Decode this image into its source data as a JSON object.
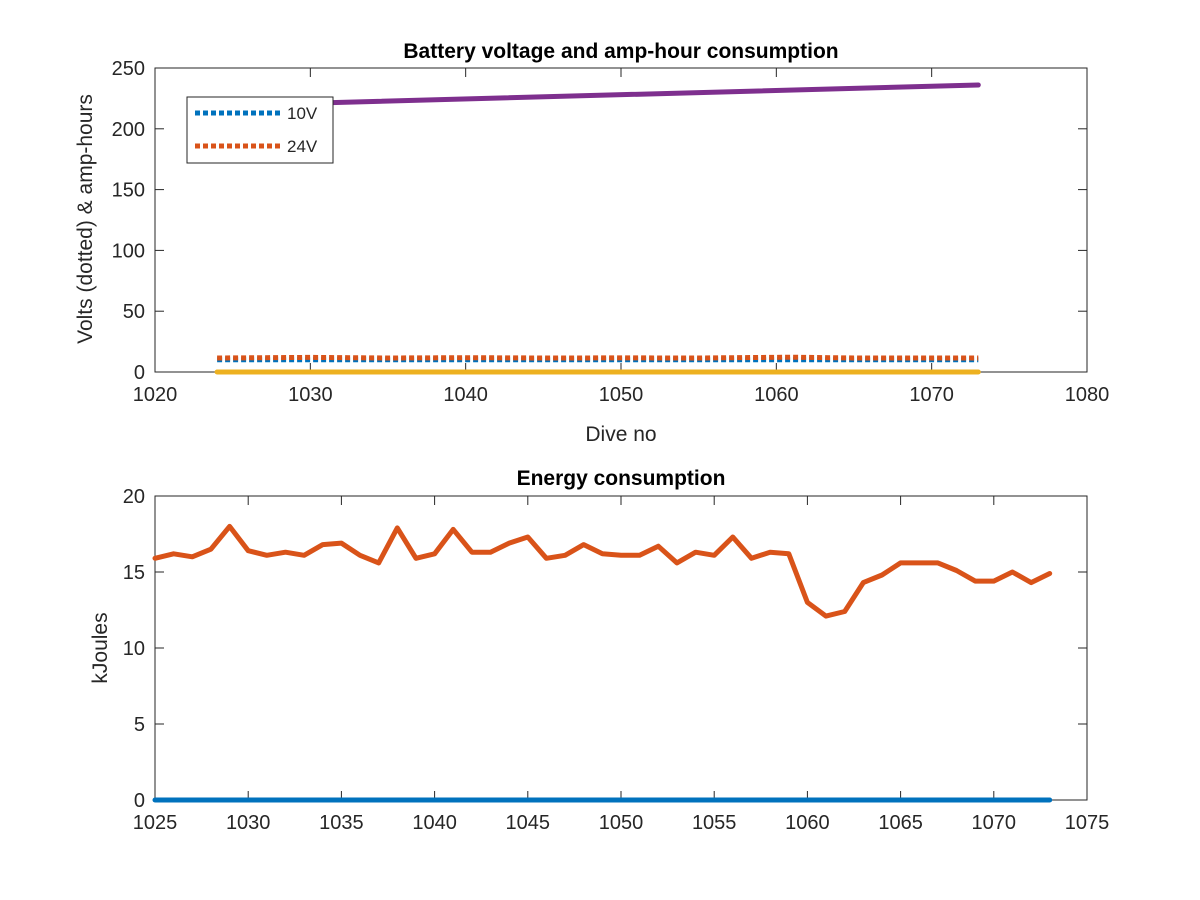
{
  "chart_data": [
    {
      "type": "line",
      "title": "Battery voltage and amp-hour consumption",
      "xlabel": "Dive no",
      "ylabel": "Volts (dotted) & amp-hours",
      "xlim": [
        1020,
        1080
      ],
      "ylim": [
        0,
        250
      ],
      "xticks": [
        "1020",
        "1030",
        "1040",
        "1050",
        "1060",
        "1070",
        "1080"
      ],
      "yticks": [
        "0",
        "50",
        "100",
        "150",
        "200",
        "250"
      ],
      "grid": false,
      "legend": {
        "position": "top-left",
        "entries": [
          "10V",
          "24V"
        ]
      },
      "series": [
        {
          "name": "10V",
          "style": "dotted",
          "color": "#0072BD",
          "x": [
            1024,
            1073
          ],
          "y": [
            10,
            10
          ]
        },
        {
          "name": "24V",
          "style": "dotted",
          "color": "#D95319",
          "x": [
            1024,
            1030,
            1035,
            1040,
            1045,
            1050,
            1055,
            1061,
            1065,
            1070,
            1073
          ],
          "y": [
            11.5,
            12,
            11.5,
            11.8,
            11.5,
            11.6,
            11.5,
            12.2,
            11.5,
            11.5,
            11.5
          ]
        },
        {
          "style": "solid",
          "color": "#EDB120",
          "x": [
            1024,
            1073
          ],
          "y": [
            0,
            0
          ]
        },
        {
          "style": "solid",
          "color": "#7E2F8E",
          "x": [
            1024,
            1073
          ],
          "y": [
            219,
            236
          ]
        }
      ]
    },
    {
      "type": "line",
      "title": "Energy consumption",
      "xlabel": "",
      "ylabel": "kJoules",
      "xlim": [
        1025,
        1075
      ],
      "ylim": [
        0,
        20
      ],
      "xticks": [
        "1025",
        "1030",
        "1035",
        "1040",
        "1045",
        "1050",
        "1055",
        "1060",
        "1065",
        "1070",
        "1075"
      ],
      "yticks": [
        "0",
        "5",
        "10",
        "15",
        "20"
      ],
      "grid": false,
      "series": [
        {
          "style": "solid",
          "color": "#D95319",
          "x": [
            1025,
            1026,
            1027,
            1028,
            1029,
            1030,
            1031,
            1032,
            1033,
            1034,
            1035,
            1036,
            1037,
            1038,
            1039,
            1040,
            1041,
            1042,
            1043,
            1044,
            1045,
            1046,
            1047,
            1048,
            1049,
            1050,
            1051,
            1052,
            1053,
            1054,
            1055,
            1056,
            1057,
            1058,
            1059,
            1060,
            1061,
            1062,
            1063,
            1064,
            1065,
            1066,
            1067,
            1068,
            1069,
            1070,
            1071,
            1072,
            1073
          ],
          "y": [
            15.9,
            16.2,
            16.0,
            16.5,
            18.0,
            16.4,
            16.1,
            16.3,
            16.1,
            16.8,
            16.9,
            16.1,
            15.6,
            17.9,
            15.9,
            16.2,
            17.8,
            16.3,
            16.3,
            16.9,
            17.3,
            15.9,
            16.1,
            16.8,
            16.2,
            16.1,
            16.1,
            16.7,
            15.6,
            16.3,
            16.1,
            17.3,
            15.9,
            16.3,
            16.2,
            13.0,
            12.1,
            12.4,
            14.3,
            14.8,
            15.6,
            15.6,
            15.6,
            15.1,
            14.4,
            14.4,
            15.0,
            14.3,
            14.9
          ]
        },
        {
          "style": "solid",
          "color": "#0072BD",
          "x": [
            1025,
            1073
          ],
          "y": [
            0,
            0
          ]
        }
      ]
    }
  ]
}
